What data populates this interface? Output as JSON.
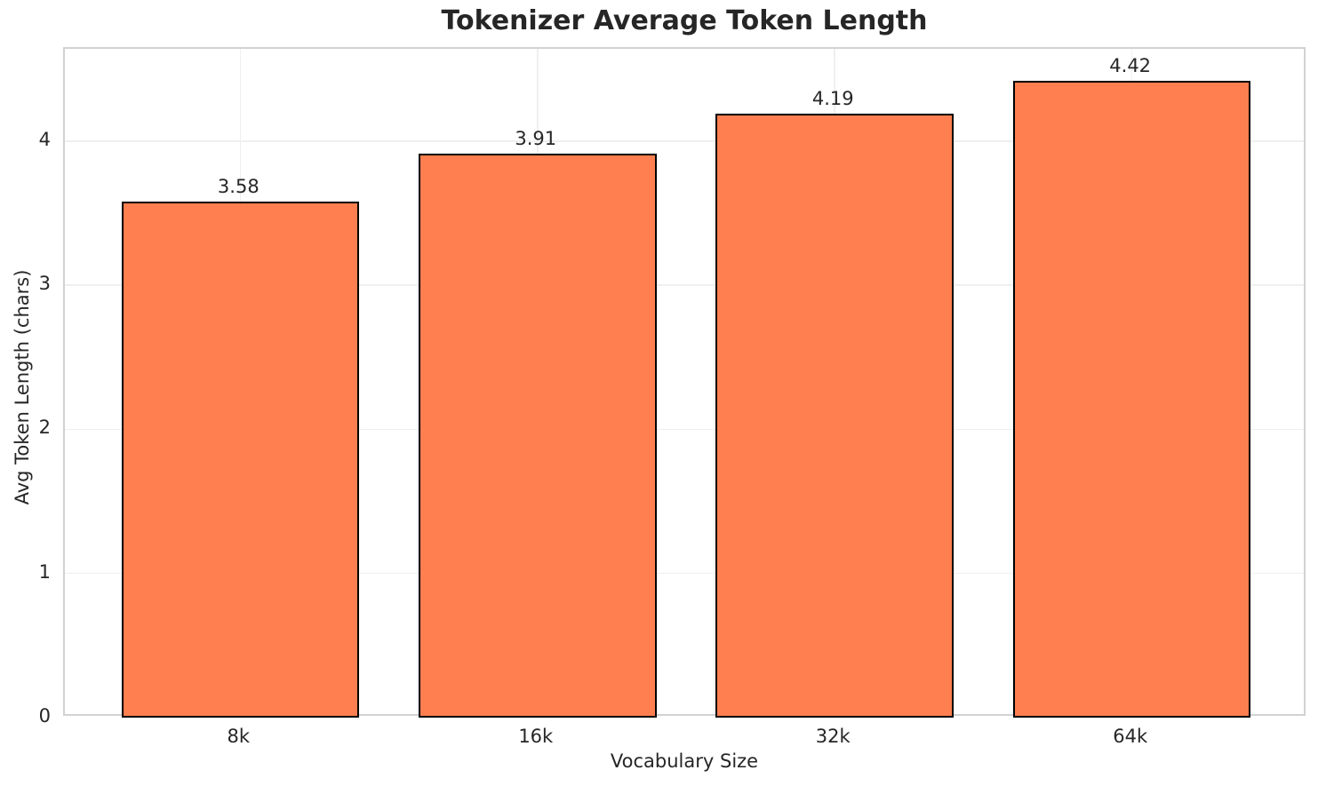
{
  "chart_data": {
    "type": "bar",
    "title": "Tokenizer Average Token Length",
    "categories": [
      "8k",
      "16k",
      "32k",
      "64k"
    ],
    "values": [
      3.58,
      3.91,
      4.19,
      4.42
    ],
    "bar_labels": [
      "3.58",
      "3.91",
      "4.19",
      "4.42"
    ],
    "xlabel": "Vocabulary Size",
    "ylabel": "Avg Token Length (chars)",
    "ylim": [
      0,
      4.64
    ],
    "yticks": [
      0,
      1,
      2,
      3,
      4
    ],
    "grid": true,
    "legend_position": "none",
    "colors": {
      "bar_fill": "#FF7F50",
      "bar_edge": "#000000",
      "text": "#262626",
      "grid_line": "#efefef",
      "spine": "#d2d2d2",
      "background": "#ffffff"
    }
  }
}
